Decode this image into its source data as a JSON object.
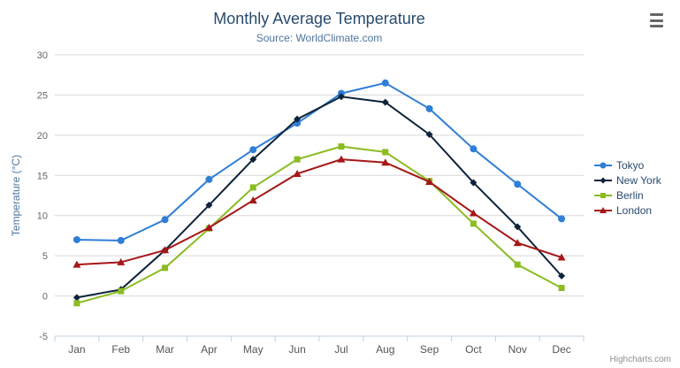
{
  "header": {
    "title": "Monthly Average Temperature",
    "subtitle": "Source: WorldClimate.com"
  },
  "credits": "Highcharts.com",
  "chart_data": {
    "type": "line",
    "title": "Monthly Average Temperature",
    "subtitle": "Source: WorldClimate.com",
    "xlabel": "",
    "ylabel": "Temperature (°C)",
    "ylim": [
      -5,
      30
    ],
    "ytick_step": 5,
    "grid": true,
    "legend_position": "right",
    "categories": [
      "Jan",
      "Feb",
      "Mar",
      "Apr",
      "May",
      "Jun",
      "Jul",
      "Aug",
      "Sep",
      "Oct",
      "Nov",
      "Dec"
    ],
    "series": [
      {
        "name": "Tokyo",
        "color": "#2f7ed8",
        "marker": "circle",
        "values": [
          7.0,
          6.9,
          9.5,
          14.5,
          18.2,
          21.5,
          25.2,
          26.5,
          23.3,
          18.3,
          13.9,
          9.6
        ]
      },
      {
        "name": "New York",
        "color": "#0d233a",
        "marker": "diamond",
        "values": [
          -0.2,
          0.8,
          5.7,
          11.3,
          17.0,
          22.0,
          24.8,
          24.1,
          20.1,
          14.1,
          8.6,
          2.5
        ]
      },
      {
        "name": "Berlin",
        "color": "#8bbc21",
        "marker": "square",
        "values": [
          -0.9,
          0.6,
          3.5,
          8.4,
          13.5,
          17.0,
          18.6,
          17.9,
          14.3,
          9.0,
          3.9,
          1.0
        ]
      },
      {
        "name": "London",
        "color": "#a51717",
        "marker": "triangle",
        "values": [
          3.9,
          4.2,
          5.7,
          8.5,
          11.9,
          15.2,
          17.0,
          16.6,
          14.2,
          10.3,
          6.6,
          4.8
        ]
      }
    ],
    "grid_color": "#d8d8d8",
    "axis_line_color": "#c0d0e0"
  }
}
